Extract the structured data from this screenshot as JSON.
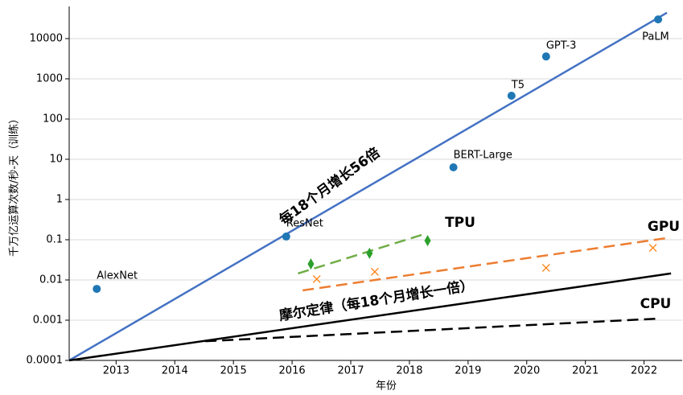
{
  "chart_data": {
    "type": "scatter",
    "x_label": "年份",
    "y_label": "千万亿运算次数/秒-天（训练）",
    "log_y": true,
    "grid": true,
    "xlim": [
      2012.2,
      2022.65
    ],
    "ylim": [
      0.0001,
      63000
    ],
    "xticks": [
      2013,
      2014,
      2015,
      2016,
      2017,
      2018,
      2019,
      2020,
      2021,
      2022
    ],
    "yticks": [
      0.0001,
      0.001,
      0.01,
      0.1,
      1,
      10,
      100,
      1000,
      10000
    ],
    "lines": [
      {
        "name": "每18个月增长56倍",
        "color": "#4472c4",
        "dashed": false,
        "x": [
          2012.2,
          2022.39
        ],
        "values": [
          0.0001,
          44000
        ]
      },
      {
        "name": "TPU",
        "color": "#70ad47",
        "dashed": true,
        "x": [
          2016.1,
          2018.3
        ],
        "values": [
          0.0145,
          0.145
        ]
      },
      {
        "name": "GPU",
        "color": "#ed7d31",
        "dashed": true,
        "x": [
          2016.18,
          2022.39
        ],
        "values": [
          0.0055,
          0.11
        ]
      },
      {
        "name": "摩尔定律（每18个月增长一倍）",
        "color": "#000000",
        "dashed": false,
        "x": [
          2012.2,
          2022.46
        ],
        "values": [
          0.0001,
          0.0145
        ]
      },
      {
        "name": "CPU",
        "color": "#000000",
        "dashed": true,
        "x": [
          2014.52,
          2022.28
        ],
        "values": [
          0.0003,
          0.0011
        ]
      }
    ],
    "models": {
      "color": "#1f77b4",
      "names": [
        "AlexNet",
        "ResNet",
        "BERT-Large",
        "T5",
        "GPT-3",
        "PaLM"
      ],
      "x": [
        2012.67,
        2015.9,
        2018.75,
        2019.74,
        2020.33,
        2022.24
      ],
      "values": [
        0.006,
        0.12,
        6.3,
        380,
        3600,
        30000
      ]
    },
    "tpu_points": {
      "color": "#2ca02c",
      "x": [
        2016.32,
        2017.32,
        2018.31
      ],
      "values": [
        0.025,
        0.046,
        0.095
      ]
    },
    "gpu_points": {
      "color": "#ff7f0e",
      "x": [
        2016.42,
        2017.41,
        2020.33,
        2022.15
      ],
      "values": [
        0.0105,
        0.016,
        0.02,
        0.063
      ]
    }
  }
}
